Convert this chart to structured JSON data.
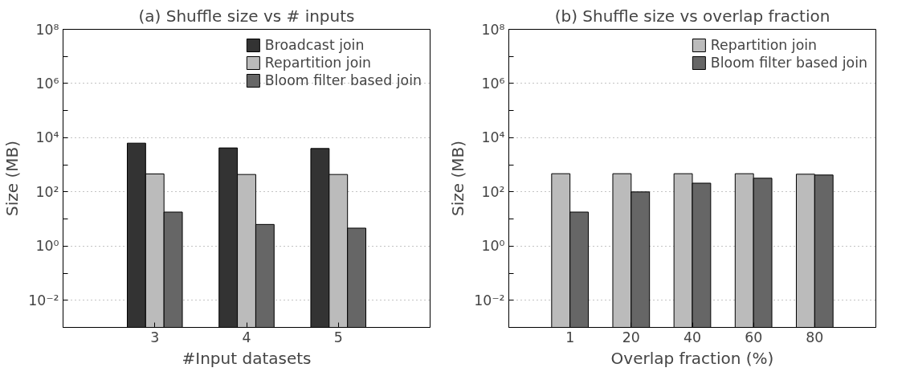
{
  "chart_data": [
    {
      "type": "bar",
      "title": "(a) Shuffle size vs # inputs",
      "xlabel": "#Input datasets",
      "ylabel": "Size (MB)",
      "categories": [
        "3",
        "4",
        "5"
      ],
      "series": [
        {
          "name": "Broadcast join",
          "color": "#333333",
          "values": [
            6300,
            4200,
            4000
          ]
        },
        {
          "name": "Repartition join",
          "color": "#bbbbbb",
          "values": [
            460,
            440,
            440
          ]
        },
        {
          "name": "Bloom filter based join",
          "color": "#666666",
          "values": [
            18,
            6.3,
            4.6
          ]
        }
      ],
      "log": true,
      "ylim": [
        0.001,
        100000000
      ],
      "yticks": [
        {
          "value": 0.01,
          "label": "10⁻²"
        },
        {
          "value": 0.1,
          "label": null
        },
        {
          "value": 1,
          "label": "10⁰"
        },
        {
          "value": 10,
          "label": null
        },
        {
          "value": 100,
          "label": "10²"
        },
        {
          "value": 1000,
          "label": null
        },
        {
          "value": 10000,
          "label": "10⁴"
        },
        {
          "value": 100000,
          "label": null
        },
        {
          "value": 1000000,
          "label": "10⁶"
        },
        {
          "value": 10000000,
          "label": null
        },
        {
          "value": 100000000,
          "label": "10⁸"
        }
      ],
      "grid": "y",
      "legend": "top right"
    },
    {
      "type": "bar",
      "title": "(b) Shuffle size vs overlap fraction",
      "xlabel": "Overlap fraction (%)",
      "ylabel": "Size (MB)",
      "categories": [
        "1",
        "20",
        "40",
        "60",
        "80"
      ],
      "series": [
        {
          "name": "Repartition join",
          "color": "#bbbbbb",
          "values": [
            470,
            470,
            470,
            470,
            450
          ]
        },
        {
          "name": "Bloom filter based join",
          "color": "#666666",
          "values": [
            18,
            100,
            210,
            320,
            420
          ]
        }
      ],
      "log": true,
      "ylim": [
        0.001,
        100000000
      ],
      "yticks": [
        {
          "value": 0.01,
          "label": "10⁻²"
        },
        {
          "value": 0.1,
          "label": null
        },
        {
          "value": 1,
          "label": "10⁰"
        },
        {
          "value": 10,
          "label": null
        },
        {
          "value": 100,
          "label": "10²"
        },
        {
          "value": 1000,
          "label": null
        },
        {
          "value": 10000,
          "label": "10⁴"
        },
        {
          "value": 100000,
          "label": null
        },
        {
          "value": 1000000,
          "label": "10⁶"
        },
        {
          "value": 10000000,
          "label": null
        },
        {
          "value": 100000000,
          "label": "10⁸"
        }
      ],
      "grid": "y",
      "legend": "top right"
    }
  ]
}
